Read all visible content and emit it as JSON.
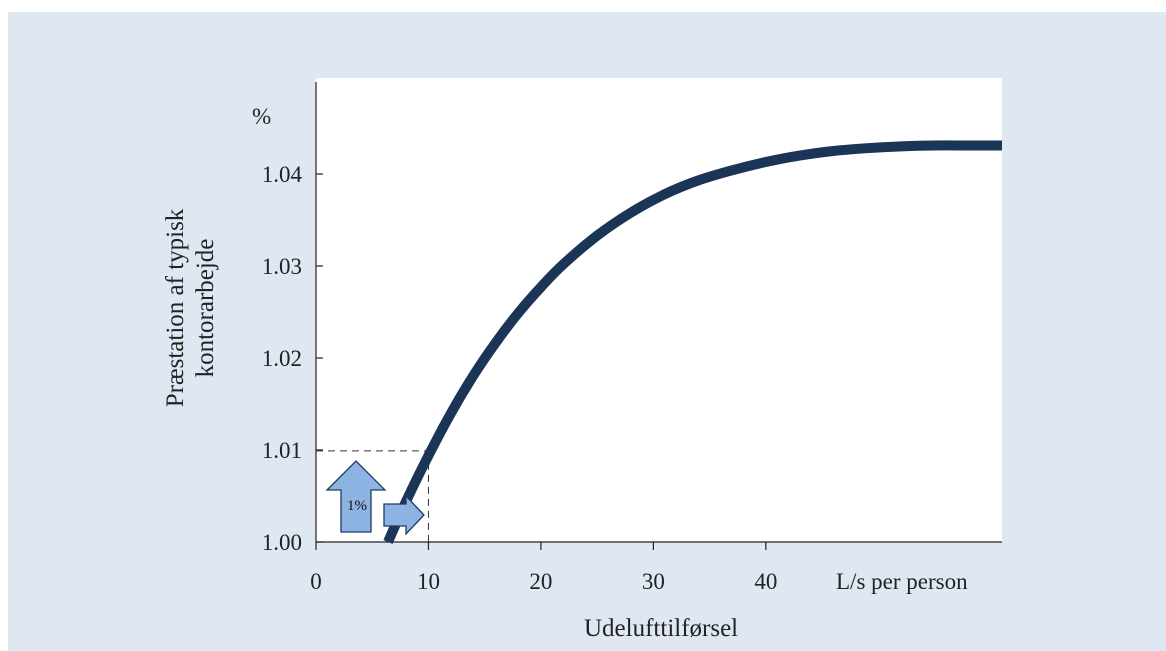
{
  "chart_data": {
    "type": "line",
    "title": "",
    "xlabel": "Udelufttilførsel",
    "x_unit_label": "L/s per person",
    "ylabel_lines": [
      "Præstation af typisk",
      "kontorarbejde"
    ],
    "y_unit_label": "%",
    "xlim": [
      0,
      61
    ],
    "ylim": [
      1.0,
      1.05
    ],
    "x_ticks": [
      "0",
      "10",
      "20",
      "30",
      "40"
    ],
    "y_ticks": [
      "1.00",
      "1.01",
      "1.02",
      "1.03",
      "1.04"
    ],
    "grid": false,
    "series": [
      {
        "color": "#1b3557",
        "x": [
          6.4,
          8,
          10,
          12,
          14,
          16,
          18,
          20,
          22,
          25,
          28,
          31,
          34,
          37,
          40,
          43,
          46,
          49,
          52,
          55,
          58,
          61
        ],
        "y": [
          1.0,
          1.0044,
          1.0094,
          1.014,
          1.0181,
          1.0217,
          1.0249,
          1.0277,
          1.0302,
          1.0333,
          1.0358,
          1.0378,
          1.0393,
          1.0404,
          1.0413,
          1.042,
          1.0425,
          1.0428,
          1.043,
          1.0431,
          1.0431,
          1.0431
        ]
      }
    ],
    "annotation": {
      "label": "1%",
      "reference_x": 10,
      "reference_y": 1.0099
    },
    "colors": {
      "background": "#dfe7f2",
      "plot_area": "#ffffff",
      "curve": "#1b3557",
      "arrow_fill": "#8db3e2",
      "arrow_stroke": "#1f3a5f"
    }
  }
}
